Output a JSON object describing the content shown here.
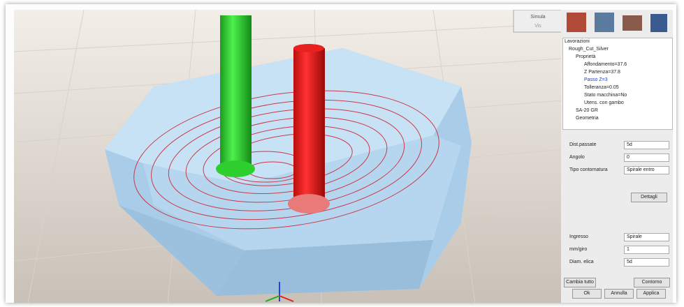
{
  "toolbar": {
    "buttons": [
      "Simula",
      "Vis"
    ]
  },
  "tree": {
    "title": "Lavorazioni",
    "items": [
      "Rough_Cut_Silver",
      "Proprietà",
      "Affondamento=37.6",
      "Z Partenza=37.8",
      "Passo Z=3",
      "Tolleranza=0.05",
      "Stato macchina=No",
      "Utens. con gambo",
      "SA-20 GR",
      "Geometria"
    ]
  },
  "form": {
    "rows": [
      {
        "label": "Dist.passate",
        "value": "5d"
      },
      {
        "label": "Angolo",
        "value": "0"
      },
      {
        "label": "Tipo contornatura",
        "value": "Spirale entro"
      }
    ],
    "details_button": "Dettagli",
    "entry_rows": [
      {
        "label": "Ingresso",
        "value": "Spirale"
      },
      {
        "label": "mm/giro",
        "value": "1"
      },
      {
        "label": "Diam. elica",
        "value": "5d"
      }
    ],
    "buttons": [
      "Cambia tutto",
      "Contorno",
      "Ok",
      "Annulla",
      "Applica"
    ]
  }
}
